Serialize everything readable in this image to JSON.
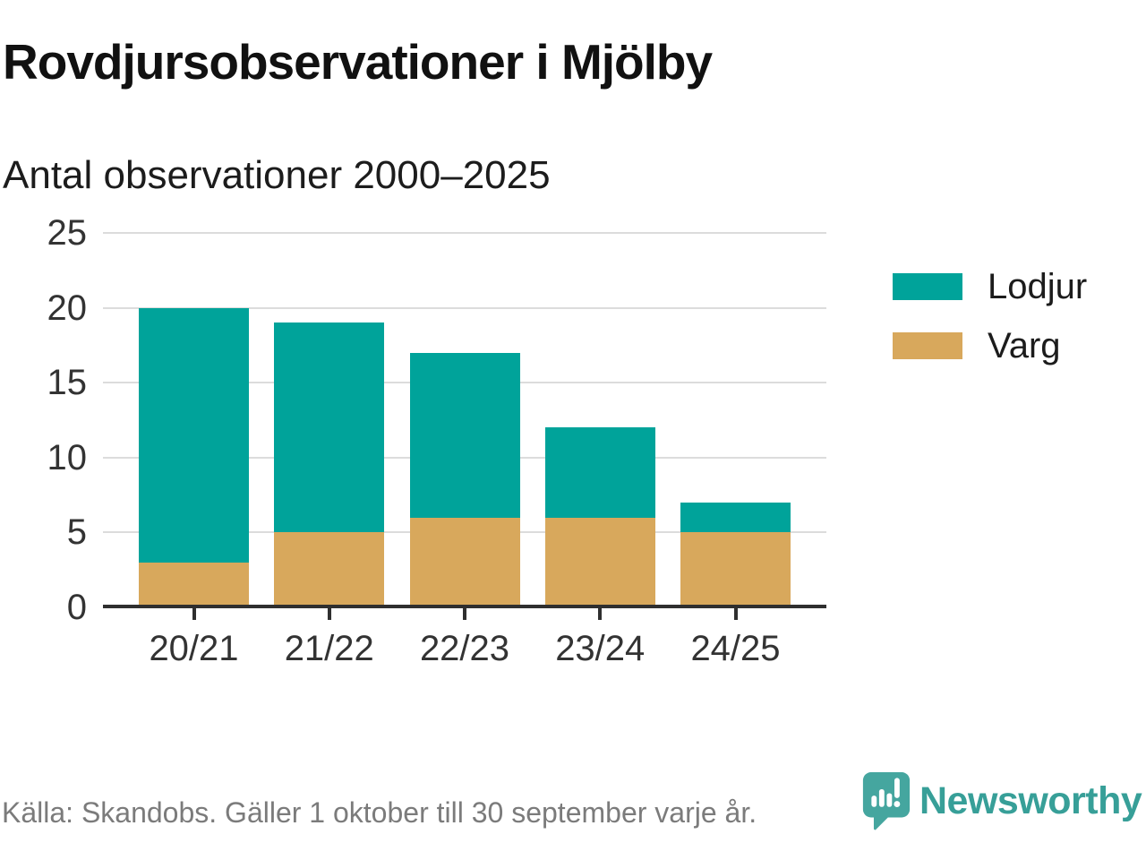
{
  "header": {
    "title": "Rovdjursobservationer i Mjölby",
    "subtitle": "Antal observationer 2000–2025"
  },
  "chart_data": {
    "type": "bar",
    "stacked": true,
    "title": "Rovdjursobservationer i Mjölby",
    "subtitle": "Antal observationer 2000–2025",
    "categories": [
      "20/21",
      "21/22",
      "22/23",
      "23/24",
      "24/25"
    ],
    "series": [
      {
        "name": "Varg",
        "color": "#d8a85c",
        "position": "bottom",
        "values": [
          3,
          5,
          6,
          6,
          5
        ]
      },
      {
        "name": "Lodjur",
        "color": "#00a39a",
        "position": "top",
        "values": [
          17,
          14,
          11,
          6,
          2
        ]
      }
    ],
    "totals": [
      20,
      19,
      17,
      12,
      7
    ],
    "xlabel": "",
    "ylabel": "",
    "ylim": [
      0,
      25
    ],
    "yticks": [
      0,
      5,
      10,
      15,
      20,
      25
    ],
    "grid": true,
    "legend_position": "right"
  },
  "legend": {
    "items": [
      {
        "label": "Lodjur",
        "color": "#00a39a"
      },
      {
        "label": "Varg",
        "color": "#d8a85c"
      }
    ]
  },
  "footer": {
    "source": "Källa: Skandobs. Gäller 1 oktober till 30 september varje år.",
    "brand": "Newsworthy"
  },
  "colors": {
    "lodjur": "#00a39a",
    "varg": "#d8a85c",
    "grid": "#dcdcdc",
    "axis": "#2f2f2f",
    "text": "#1c1c1c",
    "muted_text": "#7b7b7b",
    "brand_teal": "#379f98",
    "brand_icon_teal": "#45a69f"
  }
}
